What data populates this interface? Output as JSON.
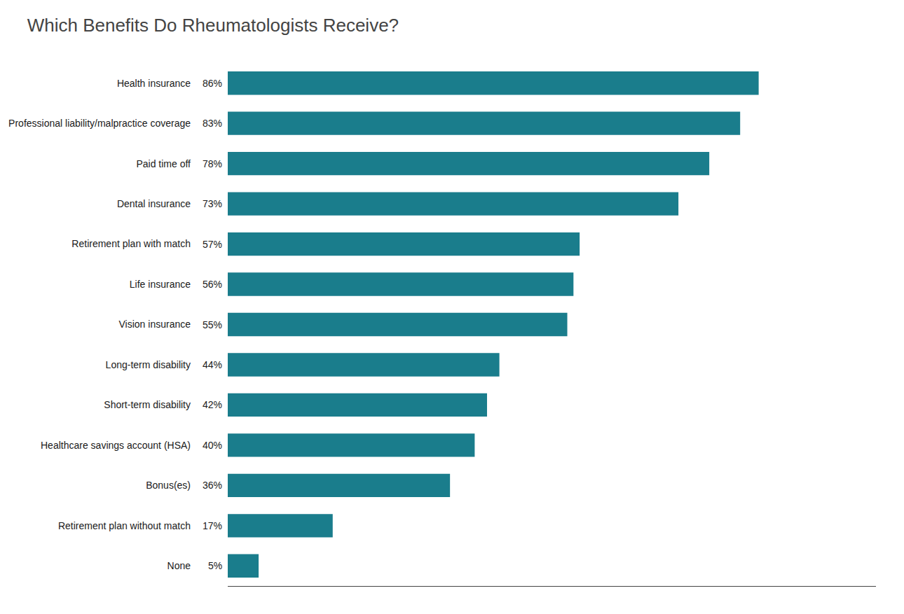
{
  "chart_data": {
    "type": "bar",
    "orientation": "horizontal",
    "title": "Which Benefits Do Rheumatologists Receive?",
    "categories": [
      "Health insurance",
      "Professional liability/malpractice coverage",
      "Paid time off",
      "Dental insurance",
      "Retirement plan with match",
      "Life insurance",
      "Vision insurance",
      "Long-term disability",
      "Short-term disability",
      "Healthcare savings account (HSA)",
      "Bonus(es)",
      "Retirement plan without match",
      "None"
    ],
    "values": [
      86,
      83,
      78,
      73,
      57,
      56,
      55,
      44,
      42,
      40,
      36,
      17,
      5
    ],
    "value_labels": [
      "86%",
      "83%",
      "78%",
      "73%",
      "57%",
      "56%",
      "55%",
      "44%",
      "42%",
      "40%",
      "36%",
      "17%",
      "5%"
    ],
    "data_labels": true,
    "color": "#1a7d8c",
    "xlim": [
      0,
      105
    ],
    "grid": false,
    "tick_labels": "y"
  }
}
